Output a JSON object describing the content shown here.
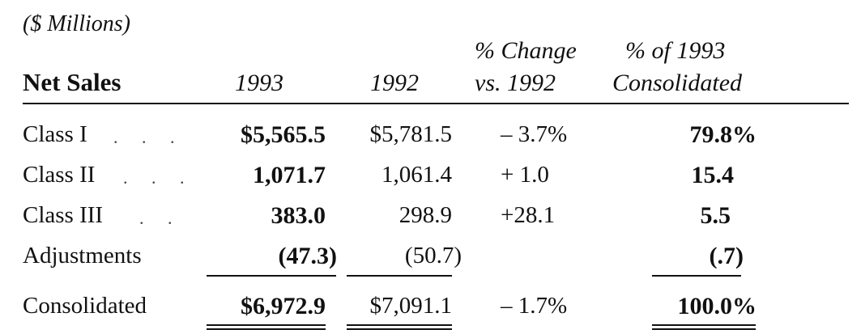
{
  "units": "($ Millions)",
  "header": {
    "title": "Net Sales",
    "col_1993": "1993",
    "col_1992": "1992",
    "col_change_line1": "% Change",
    "col_change_line2": "vs. 1992",
    "col_pct_line1": "% of 1993",
    "col_pct_line2": "Consolidated"
  },
  "rows": [
    {
      "label": "Class I",
      "leaders": ". . .",
      "v1993": "$5,565.5",
      "v1992": "$5,781.5",
      "change": "–  3.7%",
      "pct": "79.8%"
    },
    {
      "label": "Class II",
      "leaders": ". . .",
      "v1993": "1,071.7",
      "v1992": "1,061.4",
      "change": "+  1.0",
      "pct": "15.4"
    },
    {
      "label": "Class III",
      "leaders": ". .",
      "v1993": "383.0",
      "v1992": "298.9",
      "change": "+28.1",
      "pct": "5.5"
    },
    {
      "label": "Adjustments",
      "leaders": "",
      "v1993": "(47.3)",
      "v1992": "(50.7)",
      "change": "",
      "pct": "(.7)"
    },
    {
      "label": "Consolidated",
      "leaders": "",
      "v1993": "$6,972.9",
      "v1992": "$7,091.1",
      "change": "–  1.7%",
      "pct": "100.0%"
    }
  ]
}
